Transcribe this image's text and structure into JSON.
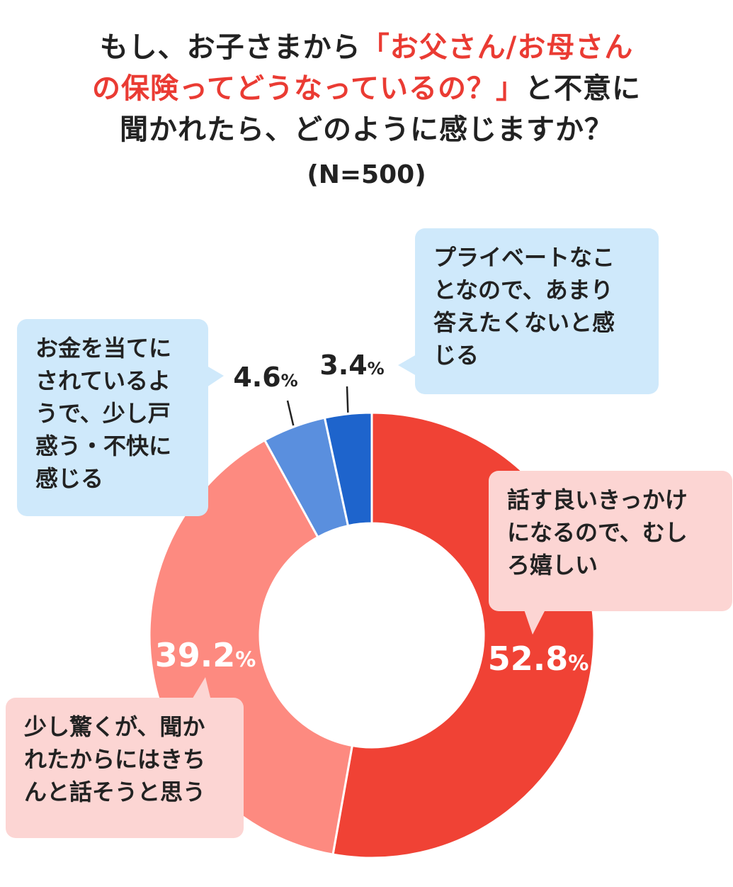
{
  "title": {
    "line1_pre": "もし、お子さまから",
    "line1_hl": "「お父さん/お母さん",
    "line2_hl": "の保険ってどうなっているの？」",
    "line2_post": "と不意に",
    "line3": "聞かれたら、どのように感じますか？",
    "n_label": "(N=500)"
  },
  "chart_data": {
    "type": "pie",
    "donut": true,
    "unit": "%",
    "slices": [
      {
        "label": "話す良いきっかけになるので、むしろ嬉しい",
        "value": 52.8,
        "color": "#f04235",
        "pct_text": "52.8",
        "pct_color": "white"
      },
      {
        "label": "少し驚くが、聞かれたからにはきちんと話そうと思う",
        "value": 39.2,
        "color": "#fd8a80",
        "pct_text": "39.2",
        "pct_color": "white"
      },
      {
        "label": "お金を当てにされているようで、少し戸惑う・不快に感じる",
        "value": 4.6,
        "color": "#5a8fde",
        "pct_text": "4.6",
        "pct_color": "dark"
      },
      {
        "label": "プライベートなことなので、あまり答えたくないと感じる",
        "value": 3.4,
        "color": "#1e64cc",
        "pct_text": "3.4",
        "pct_color": "dark"
      }
    ]
  },
  "callouts": {
    "c1": "話す良いきっかけ\nになるので、むし\nろ嬉しい",
    "c2": "少し驚くが、聞か\nれたからにはきち\nんと話そうと思う",
    "c3": "お金を当てに\nされているよ\nうで、少し戸\n惑う・不快に\n感じる",
    "c4": "プライベートなこ\nとなので、あまり\n答えたくないと感\nじる"
  }
}
